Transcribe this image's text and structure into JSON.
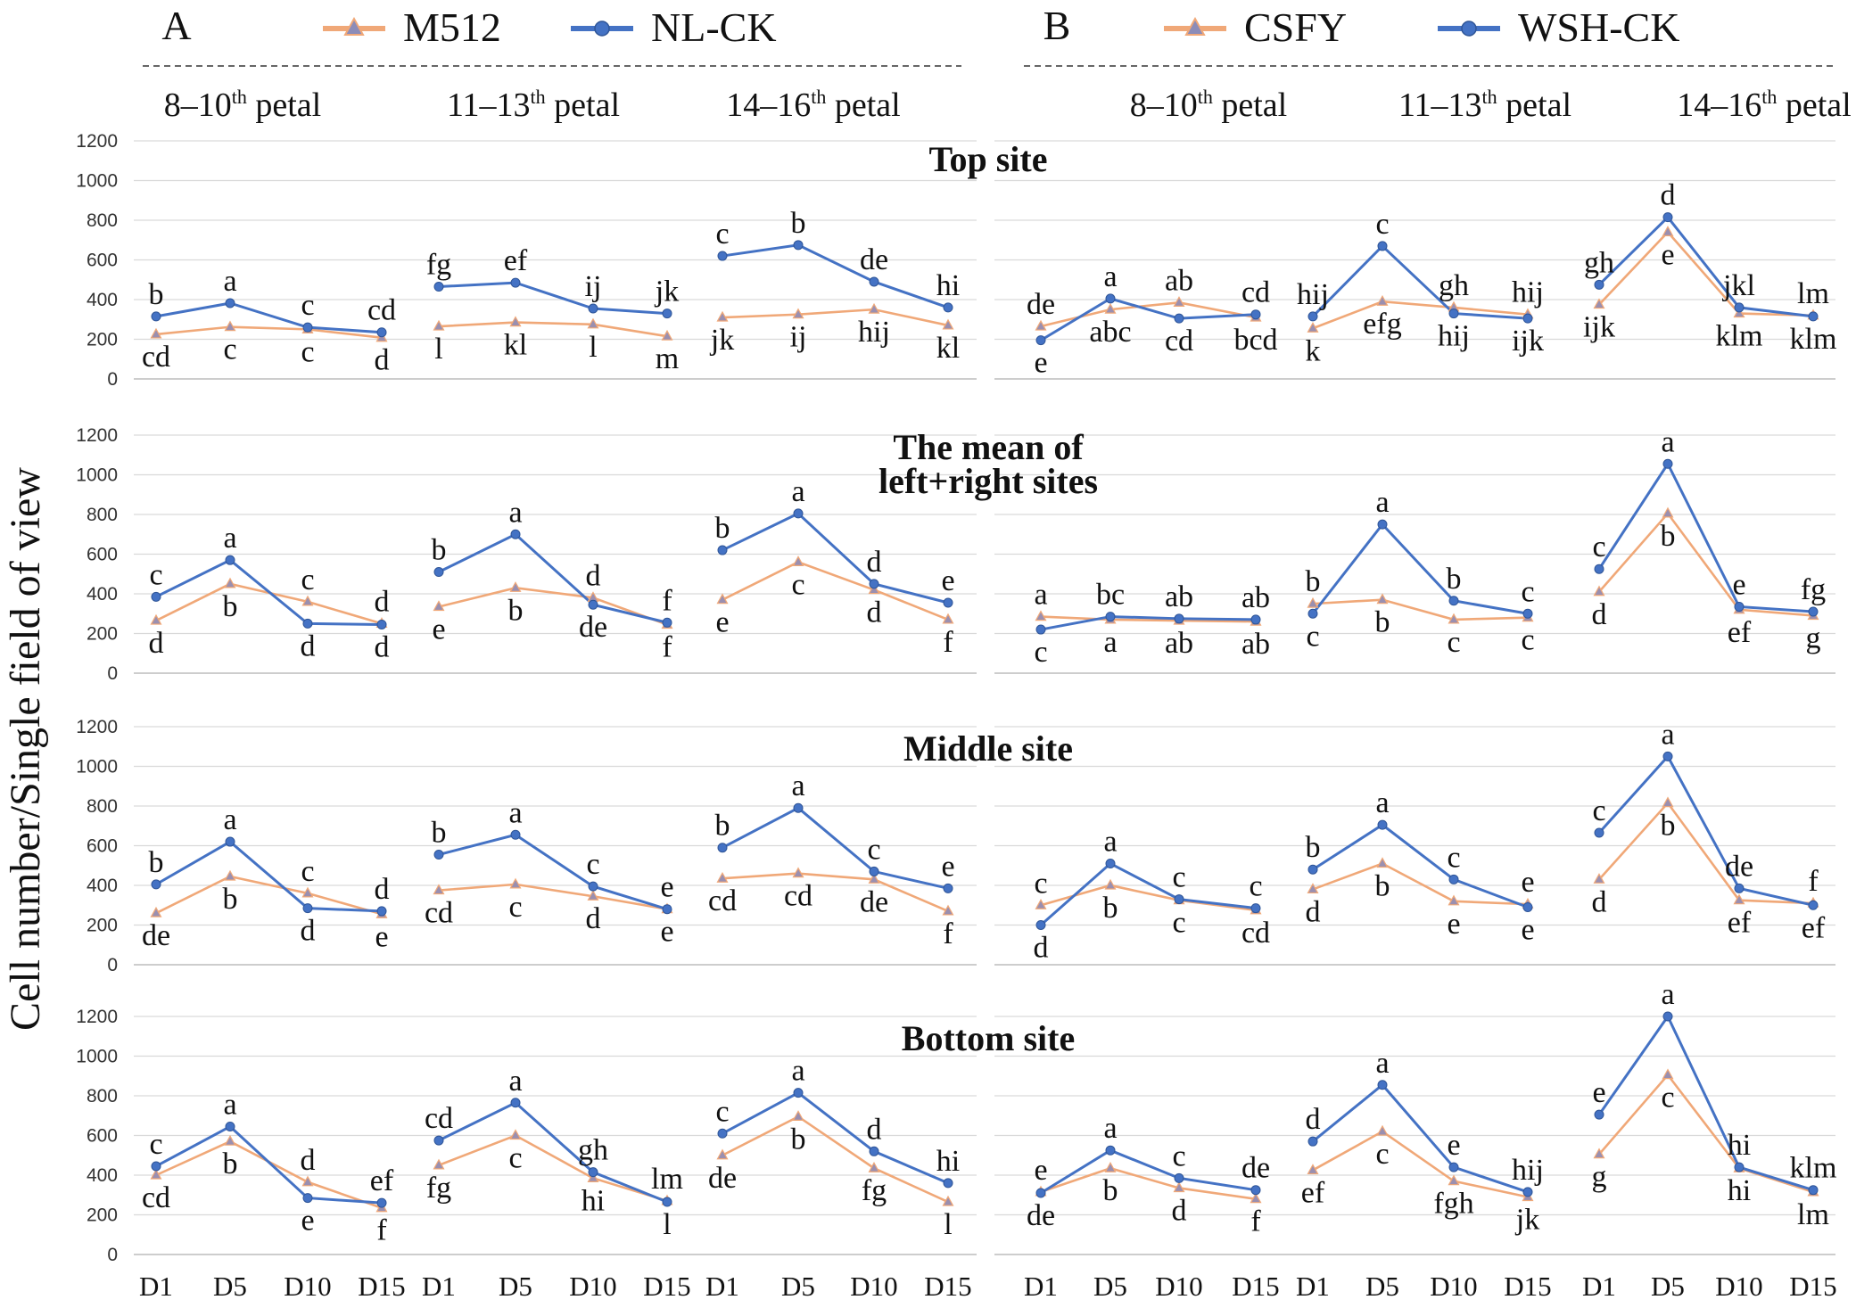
{
  "figure": {
    "y_axis_label": "Cell number/Single field of view",
    "colors": {
      "orange": "#F0A878",
      "blue": "#4472C4",
      "grid": "#D9D9D9"
    }
  },
  "panels": [
    {
      "id": "A",
      "letter": "A",
      "legend": [
        {
          "name": "M512",
          "color": "#F0A878",
          "marker": "triangle"
        },
        {
          "name": "NL-CK",
          "color": "#4472C4",
          "marker": "circle"
        }
      ],
      "groups": [
        {
          "pre": "8–10",
          "sup": "th",
          "post": " petal"
        },
        {
          "pre": "11–13",
          "sup": "th",
          "post": " petal"
        },
        {
          "pre": "14–16",
          "sup": "th",
          "post": " petal"
        }
      ]
    },
    {
      "id": "B",
      "letter": "B",
      "legend": [
        {
          "name": "CSFY",
          "color": "#F0A878",
          "marker": "triangle"
        },
        {
          "name": "WSH-CK",
          "color": "#4472C4",
          "marker": "circle"
        }
      ],
      "groups": [
        {
          "pre": "8–10",
          "sup": "th",
          "post": " petal"
        },
        {
          "pre": "11–13",
          "sup": "th",
          "post": " petal"
        },
        {
          "pre": "14–16",
          "sup": "th",
          "post": " petal"
        }
      ]
    }
  ],
  "chart_data": {
    "type": "line",
    "x": [
      "D1",
      "D5",
      "D10",
      "D15"
    ],
    "ylim": [
      0,
      1200
    ],
    "yticks": [
      0,
      200,
      400,
      600,
      800,
      1000,
      1200
    ],
    "rows": [
      {
        "title": [
          "Top site"
        ],
        "A": [
          {
            "orange": [
              225,
              262,
              250,
              208
            ],
            "blue": [
              315,
              382,
              260,
              235
            ],
            "olab": [
              "cd",
              "c",
              "c",
              "d"
            ],
            "blab": [
              "b",
              "a",
              "c",
              "cd"
            ]
          },
          {
            "orange": [
              265,
              285,
              275,
              215
            ],
            "blue": [
              465,
              485,
              355,
              330
            ],
            "olab": [
              "l",
              "kl",
              "l",
              "m"
            ],
            "blab": [
              "fg",
              "ef",
              "ij",
              "jk"
            ]
          },
          {
            "orange": [
              310,
              325,
              350,
              270
            ],
            "blue": [
              620,
              675,
              490,
              360
            ],
            "olab": [
              "jk",
              "ij",
              "hij",
              "kl"
            ],
            "blab": [
              "c",
              "b",
              "de",
              "hi"
            ]
          }
        ],
        "B": [
          {
            "orange": [
              265,
              350,
              385,
              310
            ],
            "blue": [
              195,
              405,
              305,
              325
            ],
            "olab": [
              "de",
              "abc",
              "ab",
              "bcd"
            ],
            "blab": [
              "e",
              "a",
              "cd",
              "cd"
            ]
          },
          {
            "orange": [
              255,
              390,
              360,
              325
            ],
            "blue": [
              315,
              670,
              330,
              305
            ],
            "olab": [
              "k",
              "efg",
              "gh",
              "hij"
            ],
            "blab": [
              "hij",
              "c",
              "hij",
              "ijk"
            ]
          },
          {
            "orange": [
              375,
              740,
              330,
              320
            ],
            "blue": [
              475,
              815,
              360,
              315
            ],
            "olab": [
              "ijk",
              "e",
              "klm",
              "lm"
            ],
            "blab": [
              "gh",
              "d",
              "jkl",
              "klm"
            ]
          }
        ]
      },
      {
        "title": [
          "The mean of",
          "left+right sites"
        ],
        "A": [
          {
            "orange": [
              265,
              450,
              360,
              250
            ],
            "blue": [
              385,
              570,
              250,
              245
            ],
            "olab": [
              "d",
              "b",
              "c",
              "d"
            ],
            "blab": [
              "c",
              "a",
              "d",
              "d"
            ]
          },
          {
            "orange": [
              335,
              430,
              380,
              245
            ],
            "blue": [
              510,
              700,
              345,
              255
            ],
            "olab": [
              "e",
              "b",
              "d",
              "f"
            ],
            "blab": [
              "b",
              "a",
              "de",
              "f"
            ]
          },
          {
            "orange": [
              370,
              560,
              420,
              270
            ],
            "blue": [
              620,
              805,
              450,
              355
            ],
            "olab": [
              "e",
              "c",
              "d",
              "f"
            ],
            "blab": [
              "b",
              "a",
              "d",
              "e"
            ]
          }
        ],
        "B": [
          {
            "orange": [
              285,
              270,
              265,
              260
            ],
            "blue": [
              220,
              285,
              275,
              270
            ],
            "olab": [
              "a",
              "a",
              "ab",
              "ab"
            ],
            "blab": [
              "c",
              "bc",
              "ab",
              "ab"
            ]
          },
          {
            "orange": [
              350,
              370,
              270,
              280
            ],
            "blue": [
              300,
              750,
              365,
              300
            ],
            "olab": [
              "b",
              "b",
              "c",
              "c"
            ],
            "blab": [
              "c",
              "a",
              "b",
              "c"
            ]
          },
          {
            "orange": [
              410,
              805,
              320,
              290
            ],
            "blue": [
              525,
              1055,
              335,
              310
            ],
            "olab": [
              "d",
              "b",
              "ef",
              "g"
            ],
            "blab": [
              "c",
              "a",
              "e",
              "fg"
            ]
          }
        ]
      },
      {
        "title": [
          "Middle site"
        ],
        "A": [
          {
            "orange": [
              260,
              445,
              360,
              255
            ],
            "blue": [
              405,
              620,
              285,
              270
            ],
            "olab": [
              "de",
              "b",
              "c",
              "e"
            ],
            "blab": [
              "b",
              "a",
              "d",
              "d"
            ]
          },
          {
            "orange": [
              375,
              405,
              345,
              280
            ],
            "blue": [
              555,
              655,
              395,
              280
            ],
            "olab": [
              "cd",
              "c",
              "d",
              "e"
            ],
            "blab": [
              "b",
              "a",
              "c",
              "e"
            ]
          },
          {
            "orange": [
              435,
              460,
              430,
              270
            ],
            "blue": [
              590,
              790,
              470,
              385
            ],
            "olab": [
              "cd",
              "cd",
              "de",
              "f"
            ],
            "blab": [
              "b",
              "a",
              "c",
              "e"
            ]
          }
        ],
        "B": [
          {
            "orange": [
              300,
              400,
              325,
              275
            ],
            "blue": [
              200,
              510,
              330,
              285
            ],
            "olab": [
              "c",
              "b",
              "c",
              "cd"
            ],
            "blab": [
              "d",
              "a",
              "c",
              "c"
            ]
          },
          {
            "orange": [
              380,
              510,
              320,
              305
            ],
            "blue": [
              480,
              705,
              430,
              290
            ],
            "olab": [
              "d",
              "b",
              "e",
              "e"
            ],
            "blab": [
              "b",
              "a",
              "c",
              "e"
            ]
          },
          {
            "orange": [
              430,
              815,
              325,
              310
            ],
            "blue": [
              665,
              1050,
              385,
              300
            ],
            "olab": [
              "d",
              "b",
              "ef",
              "f"
            ],
            "blab": [
              "c",
              "a",
              "de",
              "ef"
            ]
          }
        ]
      },
      {
        "title": [
          "Bottom site"
        ],
        "A": [
          {
            "orange": [
              400,
              570,
              365,
              235
            ],
            "blue": [
              445,
              645,
              285,
              260
            ],
            "olab": [
              "cd",
              "b",
              "d",
              "f"
            ],
            "blab": [
              "c",
              "a",
              "e",
              "ef"
            ]
          },
          {
            "orange": [
              450,
              600,
              385,
              270
            ],
            "blue": [
              575,
              765,
              415,
              265
            ],
            "olab": [
              "fg",
              "c",
              "hi",
              "lm"
            ],
            "blab": [
              "cd",
              "a",
              "gh",
              "l"
            ]
          },
          {
            "orange": [
              500,
              695,
              435,
              265
            ],
            "blue": [
              610,
              815,
              520,
              360
            ],
            "olab": [
              "de",
              "b",
              "fg",
              "l"
            ],
            "blab": [
              "c",
              "a",
              "d",
              "hi"
            ]
          }
        ],
        "B": [
          {
            "orange": [
              315,
              435,
              335,
              280
            ],
            "blue": [
              310,
              525,
              385,
              325
            ],
            "olab": [
              "e",
              "b",
              "d",
              "f"
            ],
            "blab": [
              "de",
              "a",
              "c",
              "de"
            ]
          },
          {
            "orange": [
              425,
              620,
              370,
              290
            ],
            "blue": [
              570,
              855,
              440,
              315
            ],
            "olab": [
              "ef",
              "c",
              "fgh",
              "jk"
            ],
            "blab": [
              "d",
              "a",
              "e",
              "hij"
            ]
          },
          {
            "orange": [
              505,
              905,
              435,
              315
            ],
            "blue": [
              705,
              1200,
              440,
              325
            ],
            "olab": [
              "g",
              "c",
              "hi",
              "lm"
            ],
            "blab": [
              "e",
              "a",
              "hi",
              "klm"
            ]
          }
        ]
      }
    ]
  }
}
